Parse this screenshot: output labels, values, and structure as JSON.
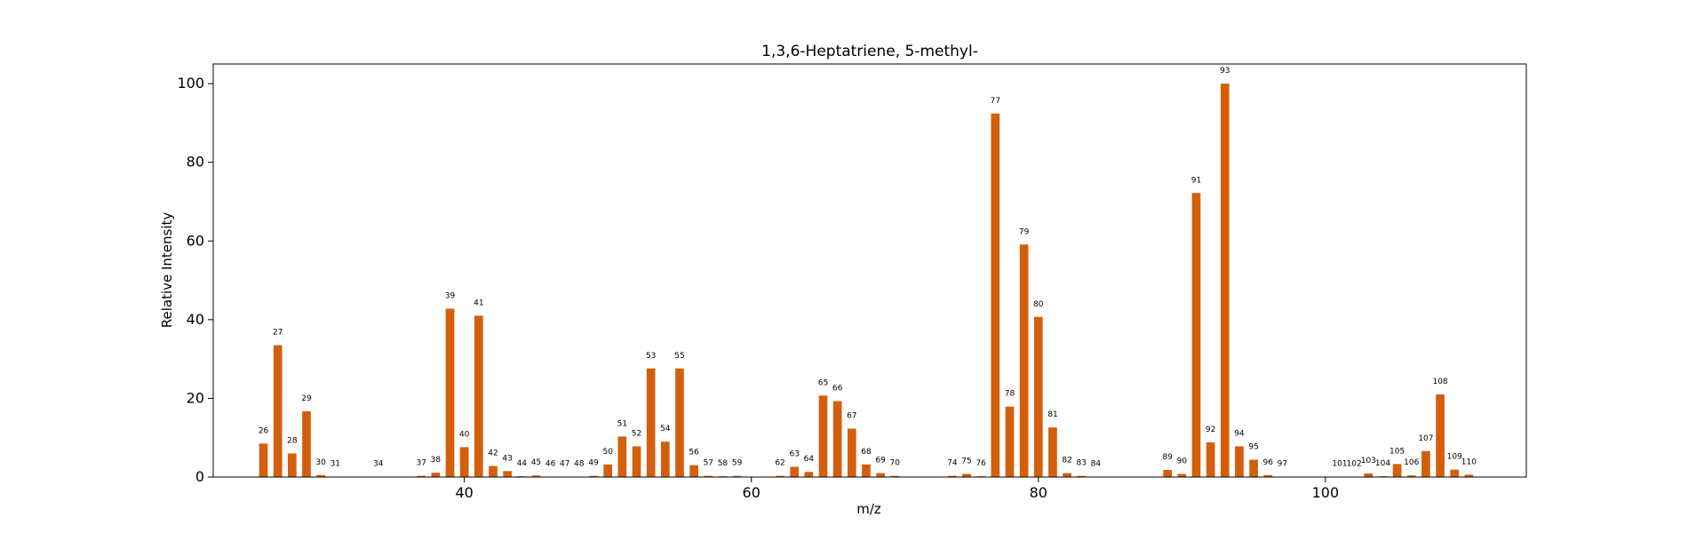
{
  "chart_data": {
    "type": "bar",
    "title": "1,3,6-Heptatriene, 5-methyl-",
    "xlabel": "m/z",
    "ylabel": "Relative Intensity",
    "xlim": [
      22.5,
      114
    ],
    "ylim": [
      0,
      105
    ],
    "xticks": [
      40,
      60,
      80,
      100
    ],
    "yticks": [
      0,
      20,
      40,
      60,
      80,
      100
    ],
    "bar_color": "#d35f0d",
    "grid": false,
    "legend": "none",
    "x": [
      26,
      27,
      28,
      29,
      30,
      31,
      34,
      37,
      38,
      39,
      40,
      41,
      42,
      43,
      44,
      45,
      46,
      47,
      48,
      49,
      50,
      51,
      52,
      53,
      54,
      55,
      56,
      57,
      58,
      59,
      62,
      63,
      64,
      65,
      66,
      67,
      68,
      69,
      70,
      74,
      75,
      76,
      77,
      78,
      79,
      80,
      81,
      82,
      83,
      84,
      89,
      90,
      91,
      92,
      93,
      94,
      95,
      96,
      97,
      101,
      102,
      103,
      104,
      105,
      106,
      107,
      108,
      109,
      110
    ],
    "values": [
      8.5,
      33.5,
      6,
      16.7,
      0.5,
      0.1,
      0.1,
      0.3,
      1.1,
      42.8,
      7.6,
      41,
      2.8,
      1.5,
      0.2,
      0.4,
      0.1,
      0.1,
      0.1,
      0.3,
      3.2,
      10.3,
      7.8,
      27.6,
      9,
      27.6,
      3,
      0.3,
      0.2,
      0.3,
      0.3,
      2.6,
      1.3,
      20.7,
      19.3,
      12.3,
      3.2,
      1,
      0.3,
      0.3,
      0.8,
      0.2,
      92.4,
      17.9,
      59.1,
      40.7,
      12.6,
      1,
      0.3,
      0.1,
      1.8,
      0.8,
      72.2,
      8.8,
      100,
      7.8,
      4.4,
      0.5,
      0.1,
      0.1,
      0.1,
      0.9,
      0.2,
      3.3,
      0.4,
      6.6,
      21,
      1.9,
      0.6
    ]
  }
}
